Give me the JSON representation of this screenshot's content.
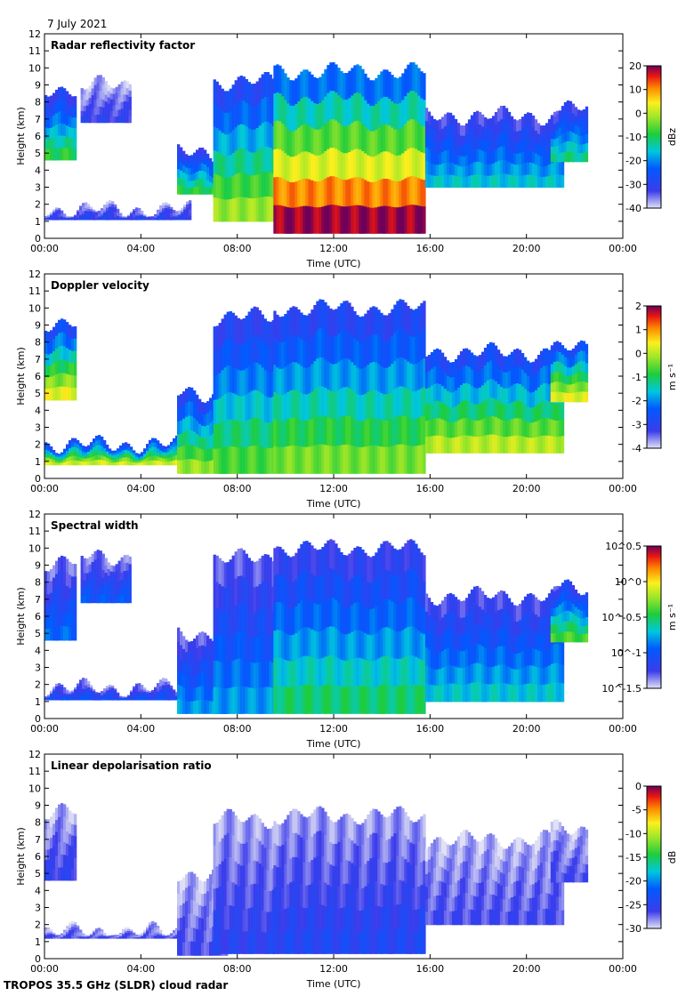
{
  "header": {
    "date": "7 July 2021"
  },
  "footer": {
    "instrument": "TROPOS 35.5 GHz (SLDR) cloud radar"
  },
  "chart_data": [
    {
      "type": "heatmap",
      "title": "Radar reflectivity factor",
      "xlabel": "Time (UTC)",
      "ylabel": "Height (km)",
      "xticks": [
        "00:00",
        "04:00",
        "08:00",
        "12:00",
        "16:00",
        "20:00",
        "00:00"
      ],
      "yticks": [
        "0",
        "1",
        "2",
        "3",
        "4",
        "5",
        "6",
        "7",
        "8",
        "9",
        "10",
        "11",
        "12"
      ],
      "ylim": [
        0,
        12
      ],
      "colorbar": {
        "label": "dBz",
        "ticks": [
          "20",
          "10",
          "0",
          "-10",
          "-20",
          "-30",
          "-40"
        ],
        "range": [
          -40,
          20
        ],
        "palette": "rainbow"
      },
      "cloud_regions": [
        {
          "t": [
            0.0,
            1.3
          ],
          "base": 4.6,
          "top": 8.8,
          "level": 0.45
        },
        {
          "t": [
            1.5,
            3.5
          ],
          "base": 6.8,
          "top": 9.0,
          "level": 0.12
        },
        {
          "t": [
            0.0,
            6.0
          ],
          "base": 1.1,
          "top": 1.7,
          "level": 0.15
        },
        {
          "t": [
            5.5,
            7.5
          ],
          "base": 2.6,
          "top": 5.0,
          "level": 0.45
        },
        {
          "t": [
            7.0,
            9.5
          ],
          "base": 1.0,
          "top": 9.2,
          "level": 0.55
        },
        {
          "t": [
            9.5,
            15.8
          ],
          "base": 0.3,
          "top": 9.8,
          "level": 0.85
        },
        {
          "t": [
            15.8,
            21.5
          ],
          "base": 3.0,
          "top": 7.2,
          "level": 0.35
        },
        {
          "t": [
            21.0,
            22.5
          ],
          "base": 4.5,
          "top": 7.6,
          "level": 0.4
        }
      ]
    },
    {
      "type": "heatmap",
      "title": "Doppler velocity",
      "xlabel": "Time (UTC)",
      "ylabel": "Height (km)",
      "xticks": [
        "00:00",
        "04:00",
        "08:00",
        "12:00",
        "16:00",
        "20:00",
        "00:00"
      ],
      "yticks": [
        "0",
        "1",
        "2",
        "3",
        "4",
        "5",
        "6",
        "7",
        "8",
        "9",
        "10",
        "11",
        "12"
      ],
      "ylim": [
        0,
        12
      ],
      "colorbar": {
        "label": "m s⁻¹",
        "ticks": [
          "2",
          "1",
          "0",
          "-1",
          "-2",
          "-3",
          "-4"
        ],
        "range": [
          -4,
          2
        ],
        "palette": "rainbow"
      },
      "cloud_regions": [
        {
          "t": [
            0.0,
            1.3
          ],
          "base": 4.6,
          "top": 9.2,
          "level": 0.62
        },
        {
          "t": [
            0.0,
            6.0
          ],
          "base": 0.8,
          "top": 2.0,
          "level": 0.6
        },
        {
          "t": [
            5.5,
            7.5
          ],
          "base": 0.3,
          "top": 5.0,
          "level": 0.55
        },
        {
          "t": [
            7.0,
            9.5
          ],
          "base": 0.3,
          "top": 9.5,
          "level": 0.48
        },
        {
          "t": [
            9.5,
            15.8
          ],
          "base": 0.3,
          "top": 10.0,
          "level": 0.52
        },
        {
          "t": [
            15.8,
            21.5
          ],
          "base": 1.5,
          "top": 7.4,
          "level": 0.58
        },
        {
          "t": [
            21.0,
            22.5
          ],
          "base": 4.5,
          "top": 7.6,
          "level": 0.62
        }
      ]
    },
    {
      "type": "heatmap",
      "title": "Spectral width",
      "xlabel": "Time (UTC)",
      "ylabel": "Height (km)",
      "xticks": [
        "00:00",
        "04:00",
        "08:00",
        "12:00",
        "16:00",
        "20:00",
        "00:00"
      ],
      "yticks": [
        "0",
        "1",
        "2",
        "3",
        "4",
        "5",
        "6",
        "7",
        "8",
        "9",
        "10",
        "11",
        "12"
      ],
      "ylim": [
        0,
        12
      ],
      "colorbar": {
        "label": "m s⁻¹",
        "ticks": [
          "10^0.5",
          "10^0",
          "10^-0.5",
          "10^-1",
          "10^-1.5"
        ],
        "range": [
          -1.5,
          0.5
        ],
        "palette": "rainbow"
      },
      "cloud_regions": [
        {
          "t": [
            0.0,
            1.3
          ],
          "base": 4.6,
          "top": 9.2,
          "level": 0.25
        },
        {
          "t": [
            1.5,
            3.5
          ],
          "base": 6.8,
          "top": 9.5,
          "level": 0.22
        },
        {
          "t": [
            0.0,
            6.0
          ],
          "base": 1.1,
          "top": 1.8,
          "level": 0.2
        },
        {
          "t": [
            5.5,
            7.5
          ],
          "base": 0.3,
          "top": 5.0,
          "level": 0.3
        },
        {
          "t": [
            7.0,
            9.5
          ],
          "base": 0.3,
          "top": 9.4,
          "level": 0.3
        },
        {
          "t": [
            9.5,
            15.8
          ],
          "base": 0.3,
          "top": 10.0,
          "level": 0.42
        },
        {
          "t": [
            15.8,
            21.5
          ],
          "base": 1.0,
          "top": 7.2,
          "level": 0.35
        },
        {
          "t": [
            21.0,
            22.5
          ],
          "base": 4.5,
          "top": 7.6,
          "level": 0.48
        }
      ]
    },
    {
      "type": "heatmap",
      "title": "Linear depolarisation ratio",
      "xlabel": "Time (UTC)",
      "ylabel": "Height (km)",
      "xticks": [
        "00:00",
        "04:00",
        "08:00",
        "12:00",
        "16:00",
        "20:00",
        "00:00"
      ],
      "yticks": [
        "0",
        "1",
        "2",
        "3",
        "4",
        "5",
        "6",
        "7",
        "8",
        "9",
        "10",
        "11",
        "12"
      ],
      "ylim": [
        0,
        12
      ],
      "colorbar": {
        "label": "dB",
        "ticks": [
          "0",
          "-5",
          "-10",
          "-15",
          "-20",
          "-25",
          "-30"
        ],
        "range": [
          -30,
          0
        ],
        "palette": "rainbow"
      },
      "cloud_regions": [
        {
          "t": [
            0.0,
            1.3
          ],
          "base": 4.6,
          "top": 8.6,
          "level": 0.12
        },
        {
          "t": [
            0.0,
            6.0
          ],
          "base": 1.2,
          "top": 1.6,
          "level": 0.1
        },
        {
          "t": [
            5.5,
            7.5
          ],
          "base": 0.2,
          "top": 5.0,
          "level": 0.1
        },
        {
          "t": [
            7.0,
            9.5
          ],
          "base": 0.3,
          "top": 8.2,
          "level": 0.14
        },
        {
          "t": [
            9.5,
            15.8
          ],
          "base": 0.3,
          "top": 8.4,
          "level": 0.16
        },
        {
          "t": [
            15.8,
            21.5
          ],
          "base": 2.0,
          "top": 7.0,
          "level": 0.1
        },
        {
          "t": [
            21.0,
            22.5
          ],
          "base": 4.5,
          "top": 7.6,
          "level": 0.1
        }
      ]
    }
  ]
}
